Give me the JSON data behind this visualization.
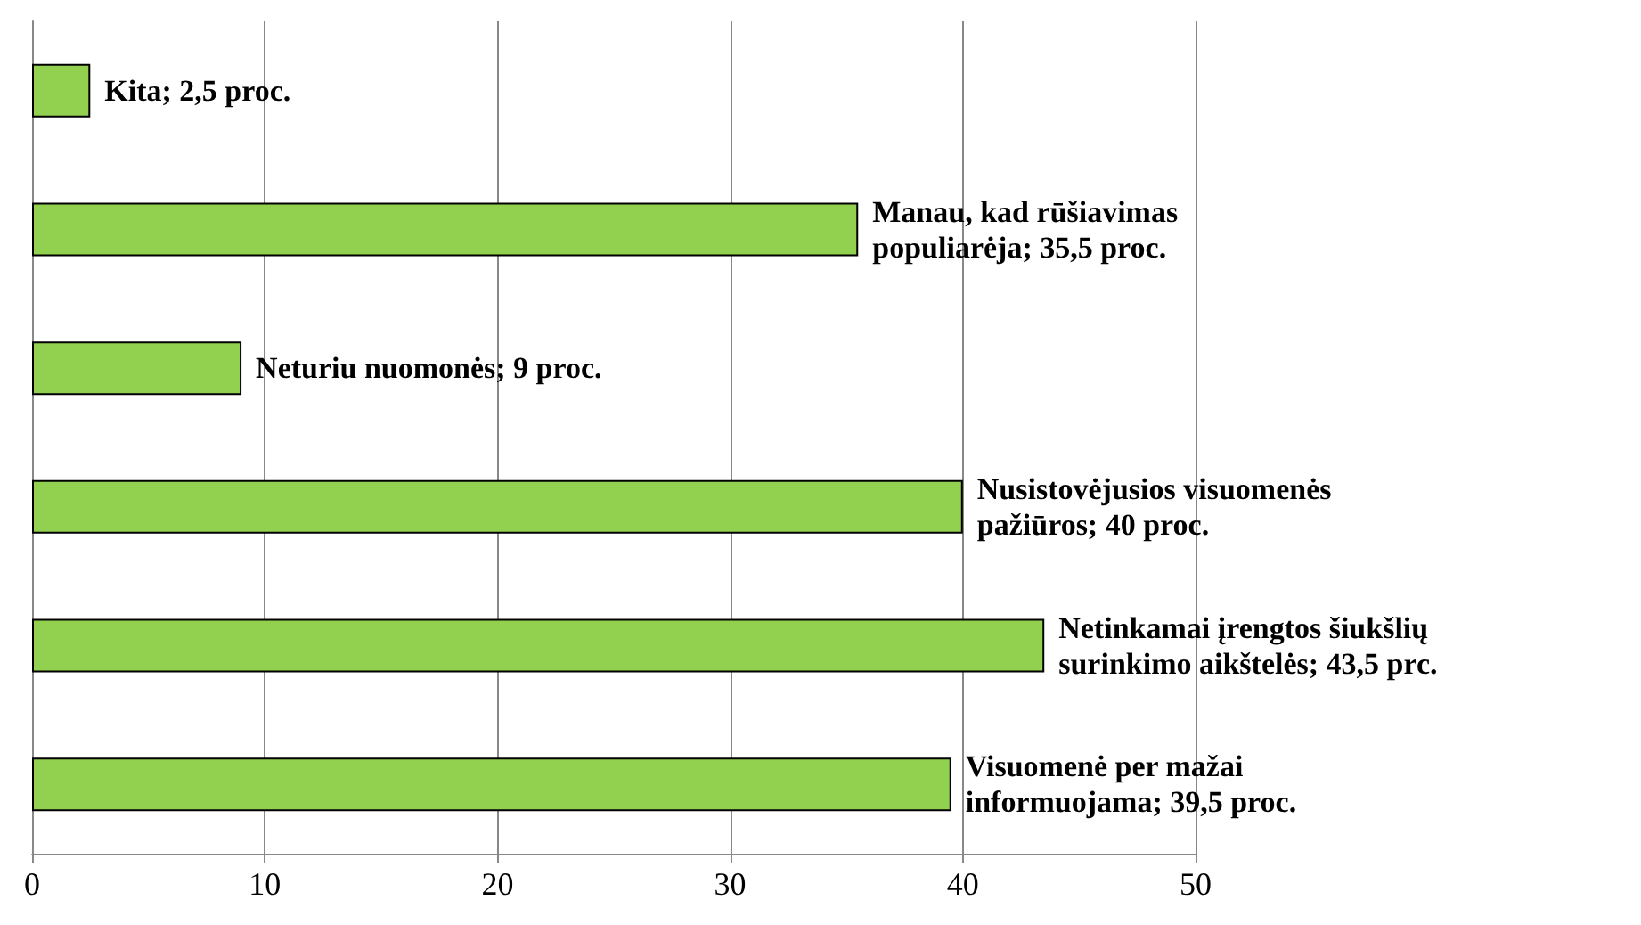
{
  "chart_data": {
    "type": "bar",
    "orientation": "horizontal",
    "categories": [
      null,
      null,
      null,
      null,
      null,
      null
    ],
    "values": [
      2.5,
      35.5,
      9,
      40,
      43.5,
      39.5
    ],
    "value_labels": [
      "Kita; 2,5 proc.",
      "Manau, kad rūšiavimas populiarėja; 35,5 proc.",
      "Neturiu nuomonės; 9 proc.",
      "Nusistovėjusios visuomenės pažiūros; 40 proc.",
      "Netinkamai įrengtos šiukšlių surinkimo aikštelės; 43,5 prc.",
      "Visuomenė per mažai informuojama; 39,5 proc."
    ],
    "color": "#92d050",
    "xlim": [
      0,
      50
    ],
    "xticks": [
      0,
      10,
      20,
      30,
      40,
      50
    ],
    "grid": "x"
  }
}
